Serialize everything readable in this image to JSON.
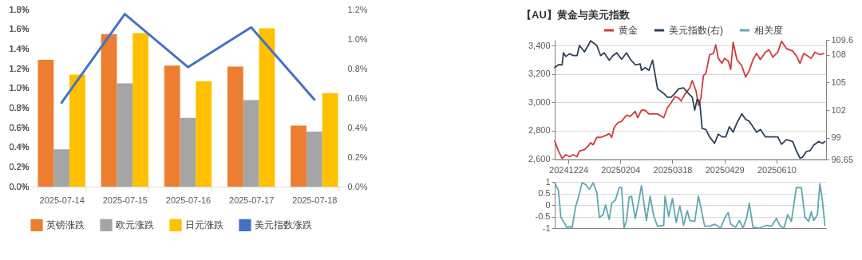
{
  "chart_data": [
    {
      "type": "bar",
      "categories": [
        "2025-07-14",
        "2025-07-15",
        "2025-07-16",
        "2025-07-17",
        "2025-07-18"
      ],
      "series": [
        {
          "name": "英镑涨跌",
          "color": "#ed7d31",
          "values": [
            1.29,
            1.55,
            1.23,
            1.22,
            0.62
          ]
        },
        {
          "name": "欧元涨跌",
          "color": "#a5a5a5",
          "values": [
            0.38,
            1.05,
            0.7,
            0.88,
            0.56
          ]
        },
        {
          "name": "日元涨跌",
          "color": "#ffc000",
          "values": [
            1.14,
            1.56,
            1.07,
            1.61,
            0.95
          ]
        },
        {
          "name": "美元指数涨跌",
          "color": "#4472c4",
          "type": "line",
          "axis": "y2",
          "values": [
            0.57,
            1.17,
            0.81,
            1.08,
            0.59
          ]
        }
      ],
      "ylim": [
        0,
        1.8
      ],
      "yticks": [
        {
          "value": 0,
          "label": "0.0%"
        },
        {
          "value": 0.2,
          "label": "0.2%"
        },
        {
          "value": 0.4,
          "label": "0.4%"
        },
        {
          "value": 0.6,
          "label": "0.6%"
        },
        {
          "value": 0.8,
          "label": "0.8%"
        },
        {
          "value": 1.0,
          "label": "1.0%"
        },
        {
          "value": 1.2,
          "label": "1.2%"
        },
        {
          "value": 1.4,
          "label": "1.4%"
        },
        {
          "value": 1.6,
          "label": "1.6%"
        },
        {
          "value": 1.8,
          "label": "1.8%"
        }
      ],
      "y2lim": [
        0,
        1.2
      ],
      "y2ticks": [
        {
          "value": 0,
          "label": "0.0%"
        },
        {
          "value": 0.2,
          "label": "0.2%"
        },
        {
          "value": 0.4,
          "label": "0.4%"
        },
        {
          "value": 0.6,
          "label": "0.6%"
        },
        {
          "value": 0.8,
          "label": "0.8%"
        },
        {
          "value": 1.0,
          "label": "1.0%"
        },
        {
          "value": 1.2,
          "label": "1.2%"
        }
      ],
      "legend": "bottom"
    },
    {
      "type": "line",
      "title": "【AU】黄金与美元指数",
      "series": [
        {
          "name": "黄金",
          "color": "#d13a3f",
          "x": [
            "2024-12-13",
            "2024-12-16",
            "2024-12-19",
            "2024-12-22",
            "2024-12-25",
            "2024-12-28",
            "2024-12-31",
            "2025-01-02",
            "2025-01-06",
            "2025-01-09",
            "2025-01-11",
            "2025-01-13",
            "2025-01-16",
            "2025-01-19",
            "2025-01-22",
            "2025-01-26",
            "2025-01-28",
            "2025-01-30",
            "2025-02-02",
            "2025-02-05",
            "2025-02-09",
            "2025-02-12",
            "2025-02-16",
            "2025-02-18",
            "2025-02-21",
            "2025-02-24",
            "2025-02-27",
            "2025-03-03",
            "2025-03-06",
            "2025-03-11",
            "2025-03-14",
            "2025-03-17",
            "2025-03-20",
            "2025-03-23",
            "2025-03-25",
            "2025-03-28",
            "2025-04-01",
            "2025-04-03",
            "2025-04-06",
            "2025-04-08",
            "2025-04-10",
            "2025-04-12",
            "2025-04-14",
            "2025-04-17",
            "2025-04-20",
            "2025-04-22",
            "2025-04-24",
            "2025-04-27",
            "2025-04-29",
            "2025-05-02",
            "2025-05-04",
            "2025-05-06",
            "2025-05-09",
            "2025-05-13",
            "2025-05-16",
            "2025-05-19",
            "2025-05-22",
            "2025-05-25",
            "2025-05-28",
            "2025-06-01",
            "2025-06-04",
            "2025-06-07",
            "2025-06-11",
            "2025-06-14",
            "2025-06-18",
            "2025-06-23",
            "2025-06-26",
            "2025-06-29",
            "2025-07-02",
            "2025-07-05",
            "2025-07-08",
            "2025-07-11",
            "2025-07-15",
            "2025-07-18"
          ],
          "values": [
            2727,
            2657,
            2605,
            2631,
            2617,
            2631,
            2617,
            2657,
            2666,
            2692,
            2715,
            2701,
            2753,
            2753,
            2762,
            2779,
            2753,
            2823,
            2857,
            2866,
            2910,
            2901,
            2936,
            2892,
            2944,
            2944,
            2918,
            2918,
            2918,
            2892,
            2962,
            2997,
            3040,
            3031,
            3009,
            3057,
            3101,
            3153,
            3083,
            2979,
            3031,
            3188,
            3205,
            3336,
            3344,
            3405,
            3310,
            3275,
            3310,
            3292,
            3231,
            3423,
            3301,
            3257,
            3179,
            3223,
            3301,
            3344,
            3301,
            3353,
            3370,
            3318,
            3353,
            3431,
            3379,
            3362,
            3327,
            3275,
            3344,
            3327,
            3310,
            3353,
            3336,
            3344
          ]
        },
        {
          "name": "美元指数(右)",
          "color": "#2e4157",
          "axis": "y2",
          "x": [
            "2024-12-13",
            "2024-12-16",
            "2024-12-19",
            "2024-12-20",
            "2024-12-22",
            "2024-12-25",
            "2024-12-28",
            "2024-12-31",
            "2025-01-02",
            "2025-01-06",
            "2025-01-09",
            "2025-01-11",
            "2025-01-13",
            "2025-01-16",
            "2025-01-19",
            "2025-01-22",
            "2025-01-26",
            "2025-01-29",
            "2025-02-01",
            "2025-02-05",
            "2025-02-09",
            "2025-02-12",
            "2025-02-16",
            "2025-02-20",
            "2025-02-21",
            "2025-02-24",
            "2025-02-27",
            "2025-03-02",
            "2025-03-06",
            "2025-03-11",
            "2025-03-14",
            "2025-03-17",
            "2025-03-20",
            "2025-03-23",
            "2025-03-27",
            "2025-03-31",
            "2025-04-03",
            "2025-04-05",
            "2025-04-07",
            "2025-04-09",
            "2025-04-11",
            "2025-04-14",
            "2025-04-17",
            "2025-04-21",
            "2025-04-24",
            "2025-04-27",
            "2025-04-30",
            "2025-05-03",
            "2025-05-06",
            "2025-05-09",
            "2025-05-13",
            "2025-05-16",
            "2025-05-19",
            "2025-05-22",
            "2025-05-25",
            "2025-05-28",
            "2025-06-01",
            "2025-06-04",
            "2025-06-07",
            "2025-06-11",
            "2025-06-14",
            "2025-06-18",
            "2025-06-23",
            "2025-06-26",
            "2025-06-29",
            "2025-07-01",
            "2025-07-04",
            "2025-07-07",
            "2025-07-10",
            "2025-07-14",
            "2025-07-17",
            "2025-07-19"
          ],
          "values": [
            106.6,
            106.9,
            106.9,
            108.2,
            107.8,
            108.1,
            107.9,
            107.9,
            109.0,
            108.3,
            109.0,
            109.5,
            109.3,
            109.0,
            107.9,
            108.2,
            107.4,
            107.9,
            108.2,
            107.5,
            108.2,
            107.5,
            106.9,
            107.0,
            106.3,
            106.6,
            106.3,
            107.4,
            104.3,
            103.8,
            103.4,
            103.4,
            103.8,
            104.3,
            104.4,
            103.8,
            103.4,
            102.0,
            103.2,
            102.9,
            100.0,
            99.9,
            99.1,
            98.4,
            99.4,
            99.1,
            99.1,
            100.2,
            99.6,
            100.6,
            101.6,
            101.0,
            100.8,
            100.2,
            99.6,
            99.9,
            99.1,
            99.1,
            99.1,
            99.1,
            98.3,
            98.8,
            98.6,
            97.6,
            96.8,
            96.9,
            97.5,
            97.6,
            98.2,
            98.6,
            98.4,
            98.6
          ]
        }
      ],
      "xlim": [
        "2024-12-13",
        "2025-07-20"
      ],
      "xticks": [
        {
          "value": "2024-12-24",
          "label": "20241224"
        },
        {
          "value": "2025-02-04",
          "label": "20250204"
        },
        {
          "value": "2025-03-18",
          "label": "20250318"
        },
        {
          "value": "2025-04-29",
          "label": "20250429"
        },
        {
          "value": "2025-06-10",
          "label": "20250610"
        }
      ],
      "ylim": [
        2597,
        3440
      ],
      "yticks": [
        {
          "value": 2600,
          "label": "2,600"
        },
        {
          "value": 2800,
          "label": "2,800"
        },
        {
          "value": 3000,
          "label": "3,000"
        },
        {
          "value": 3200,
          "label": "3,200"
        },
        {
          "value": 3400,
          "label": "3,400"
        }
      ],
      "y2lim": [
        96.65,
        109.6
      ],
      "y2ticks": [
        96.65,
        99,
        102,
        105,
        108,
        109.6
      ],
      "grid": "y",
      "legend": "top"
    },
    {
      "type": "line",
      "series": [
        {
          "name": "相关度",
          "color": "#5fa8b0",
          "x": [
            "2024-12-13",
            "2024-12-16",
            "2024-12-18",
            "2024-12-21",
            "2024-12-23",
            "2024-12-25",
            "2024-12-27",
            "2024-12-30",
            "2025-01-01",
            "2025-01-04",
            "2025-01-07",
            "2025-01-10",
            "2025-01-13",
            "2025-01-16",
            "2025-01-18",
            "2025-01-21",
            "2025-01-23",
            "2025-01-26",
            "2025-01-28",
            "2025-01-31",
            "2025-02-03",
            "2025-02-05",
            "2025-02-07",
            "2025-02-09",
            "2025-02-11",
            "2025-02-13",
            "2025-02-16",
            "2025-02-19",
            "2025-02-21",
            "2025-02-23",
            "2025-02-25",
            "2025-02-28",
            "2025-03-03",
            "2025-03-06",
            "2025-03-11",
            "2025-03-12",
            "2025-03-15",
            "2025-03-18",
            "2025-03-21",
            "2025-03-24",
            "2025-03-27",
            "2025-03-30",
            "2025-04-01",
            "2025-04-05",
            "2025-04-08",
            "2025-04-10",
            "2025-04-13",
            "2025-04-17",
            "2025-04-21",
            "2025-04-26",
            "2025-04-29",
            "2025-05-02",
            "2025-05-04",
            "2025-05-08",
            "2025-05-11",
            "2025-05-14",
            "2025-05-17",
            "2025-05-19",
            "2025-05-22",
            "2025-05-27",
            "2025-06-02",
            "2025-06-06",
            "2025-06-10",
            "2025-06-13",
            "2025-06-16",
            "2025-06-19",
            "2025-06-22",
            "2025-06-26",
            "2025-06-30",
            "2025-07-03",
            "2025-07-06",
            "2025-07-08",
            "2025-07-10",
            "2025-07-13",
            "2025-07-15",
            "2025-07-17",
            "2025-07-19"
          ],
          "values": [
            0.96,
            0.63,
            -0.54,
            -0.79,
            -1.0,
            -0.92,
            -1.0,
            -0.04,
            0.29,
            0.96,
            0.88,
            0.67,
            0.96,
            0.54,
            -0.54,
            -0.42,
            0,
            -0.63,
            0.08,
            0.21,
            0.75,
            0.75,
            -1.0,
            -0.67,
            0.33,
            0.38,
            -0.58,
            0.21,
            0.83,
            0.08,
            -0.67,
            0.38,
            -0.5,
            -0.92,
            -0.88,
            0.38,
            -0.5,
            0.29,
            -0.75,
            -0.04,
            -0.88,
            -0.25,
            -0.67,
            -0.71,
            0.38,
            -0.12,
            -0.92,
            -0.92,
            -0.83,
            -1.0,
            -0.58,
            -0.33,
            -0.83,
            -0.96,
            -0.67,
            -1.0,
            -0.54,
            0.08,
            -0.96,
            -1.0,
            -0.88,
            -0.92,
            -0.58,
            -0.92,
            -1.0,
            -0.42,
            -0.71,
            0.75,
            0.75,
            -0.54,
            -0.71,
            -0.29,
            -0.67,
            -0.42,
            0.92,
            0.21,
            -0.88
          ]
        }
      ],
      "xlim": [
        "2024-12-13",
        "2025-07-20"
      ],
      "ylim": [
        -1,
        1
      ],
      "yticks": [
        1,
        0.5,
        0,
        -0.5,
        -1
      ],
      "grid": "y",
      "legend": "top",
      "tick_labels": "y"
    }
  ]
}
